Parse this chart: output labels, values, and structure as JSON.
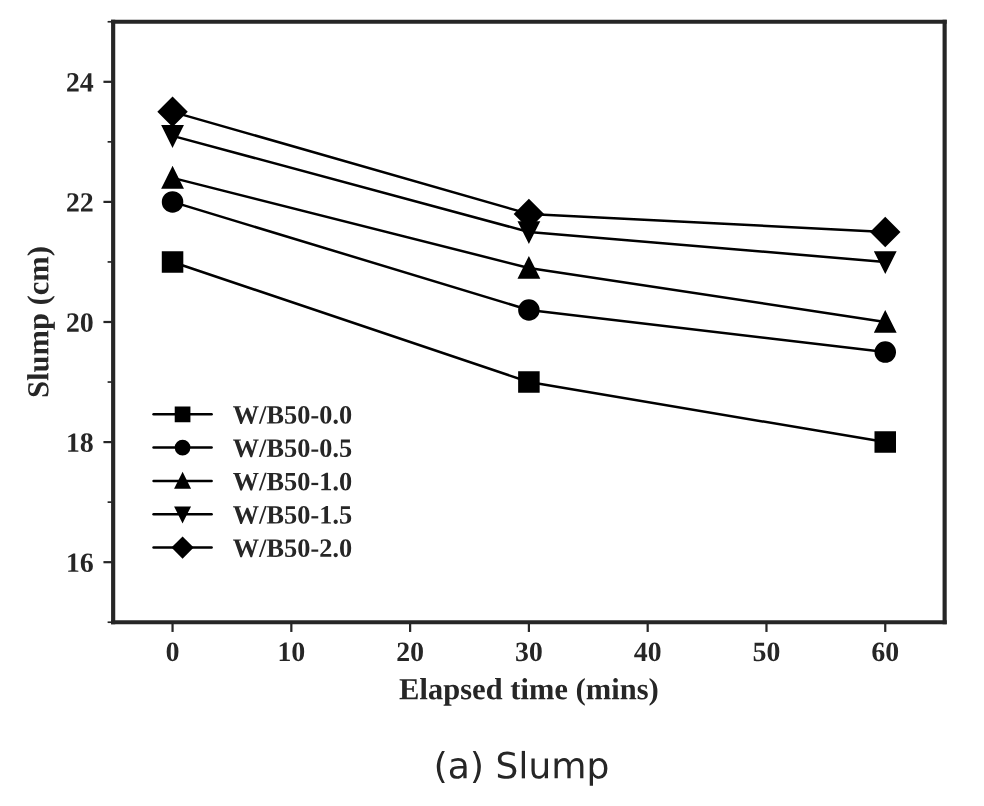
{
  "chart_data": {
    "type": "line",
    "xlabel": "Elapsed time (mins)",
    "ylabel": "Slump (cm)",
    "x": [
      0,
      30,
      60
    ],
    "series": [
      {
        "name": "W/B50-0.0",
        "color": "#000000",
        "marker": "square",
        "values": [
          21.0,
          19.0,
          18.0
        ]
      },
      {
        "name": "W/B50-0.5",
        "color": "#000000",
        "marker": "circle",
        "values": [
          22.0,
          20.2,
          19.5
        ]
      },
      {
        "name": "W/B50-1.0",
        "color": "#000000",
        "marker": "triangle",
        "values": [
          22.4,
          20.9,
          20.0
        ]
      },
      {
        "name": "W/B50-1.5",
        "color": "#000000",
        "marker": "triangle_down",
        "values": [
          23.1,
          21.5,
          21.0
        ]
      },
      {
        "name": "W/B50-2.0",
        "color": "#000000",
        "marker": "diamond",
        "values": [
          23.5,
          21.8,
          21.5
        ]
      }
    ],
    "xlim": [
      -5,
      65
    ],
    "xticks": [
      0,
      10,
      20,
      30,
      40,
      50,
      60
    ],
    "ylim": [
      15,
      25
    ],
    "yticks": [
      16,
      18,
      20,
      22,
      24
    ],
    "grid": false,
    "legend": "bottom left",
    "line_style": "solid",
    "annotations": [
      "(a) Slump"
    ]
  }
}
